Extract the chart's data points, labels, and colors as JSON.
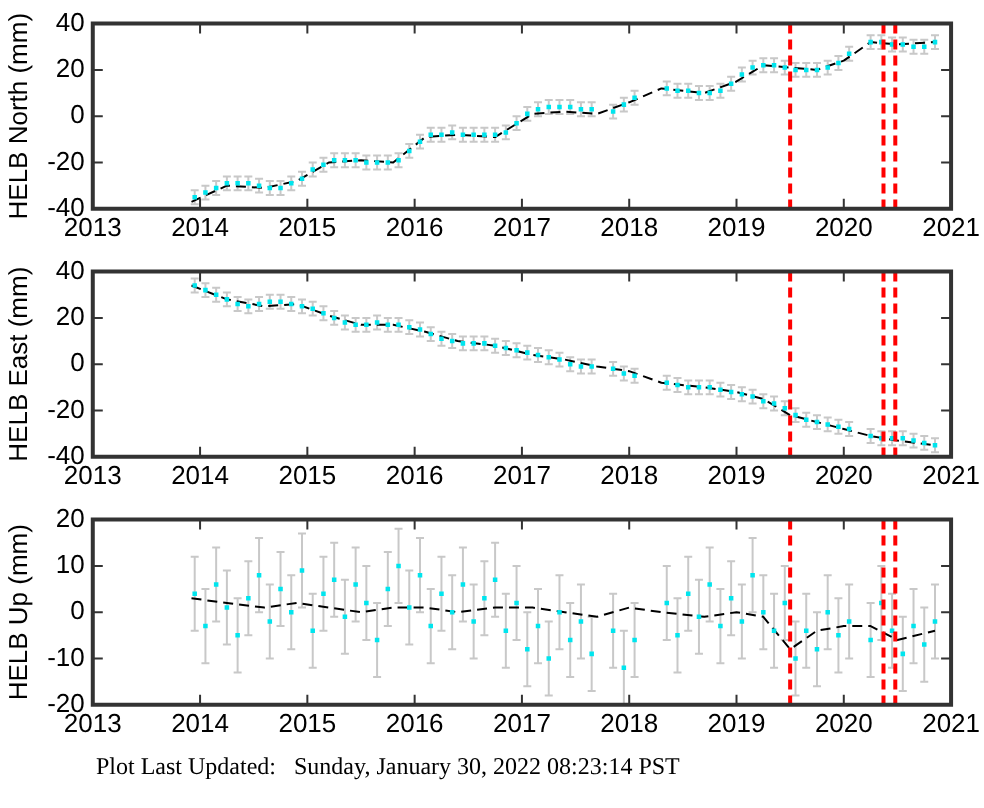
{
  "chart_data": [
    {
      "type": "scatter",
      "ylabel": "HELB North (mm)",
      "xlim": [
        2013,
        2021
      ],
      "xticks": [
        2013,
        2014,
        2015,
        2016,
        2017,
        2018,
        2019,
        2020,
        2021
      ],
      "ylim": [
        -40,
        40
      ],
      "yticks": [
        -40,
        -20,
        0,
        20,
        40
      ],
      "grid": false,
      "legend": false,
      "x": [
        2013.95,
        2014.05,
        2014.15,
        2014.25,
        2014.35,
        2014.45,
        2014.55,
        2014.65,
        2014.75,
        2014.85,
        2014.95,
        2015.05,
        2015.15,
        2015.25,
        2015.35,
        2015.45,
        2015.55,
        2015.65,
        2015.75,
        2015.85,
        2015.95,
        2016.05,
        2016.15,
        2016.25,
        2016.35,
        2016.45,
        2016.55,
        2016.65,
        2016.75,
        2016.85,
        2016.95,
        2017.05,
        2017.15,
        2017.25,
        2017.35,
        2017.45,
        2017.55,
        2017.65,
        2017.75,
        2017.85,
        2017.95,
        2018.05,
        2018.15,
        2018.25,
        2018.35,
        2018.45,
        2018.55,
        2018.65,
        2018.75,
        2018.85,
        2018.95,
        2019.05,
        2019.15,
        2019.25,
        2019.35,
        2019.45,
        2019.55,
        2019.65,
        2019.75,
        2019.85,
        2019.95,
        2020.05,
        2020.15,
        2020.25,
        2020.35,
        2020.45,
        2020.55,
        2020.65,
        2020.75,
        2020.85
      ],
      "series": [
        {
          "type": "scatter",
          "marker": "square",
          "color": "#00e5ee",
          "values": [
            -35,
            -33,
            -31,
            -29,
            -29,
            -29,
            -30,
            -31,
            -31,
            -29,
            -27,
            -23,
            -21,
            -19,
            -19,
            -19,
            -20,
            -20,
            -20,
            -19,
            -15,
            -11,
            -8,
            -8,
            -7,
            -8,
            -8,
            -8,
            -8,
            -7,
            -3,
            1,
            3,
            4,
            4,
            4,
            3,
            3,
            null,
            2,
            5,
            8,
            null,
            null,
            12,
            11,
            11,
            10,
            10,
            11,
            14,
            18,
            21,
            22,
            22,
            21,
            20,
            20,
            20,
            21,
            23,
            27,
            null,
            32,
            32,
            31,
            31,
            30,
            30,
            32
          ],
          "errors": [
            3,
            3,
            3,
            3,
            3,
            3,
            3,
            3,
            3,
            3,
            3,
            3,
            3,
            3,
            3,
            3,
            3,
            3,
            3,
            3,
            3,
            3,
            3,
            3,
            3,
            3,
            3,
            3,
            3,
            3,
            3,
            3,
            3,
            3,
            3,
            3,
            3,
            3,
            null,
            3,
            3,
            3,
            null,
            null,
            3,
            3,
            3,
            3,
            3,
            3,
            3,
            3,
            3,
            3,
            3,
            3,
            3,
            3,
            3,
            3,
            3,
            3,
            null,
            3,
            3,
            3,
            3,
            3,
            3,
            3
          ]
        },
        {
          "type": "line",
          "color": "#000000",
          "line_style": "dashed",
          "x": [
            2013.92,
            2014.25,
            2014.6,
            2014.9,
            2015.2,
            2015.5,
            2015.8,
            2016.1,
            2016.4,
            2016.75,
            2017.1,
            2017.4,
            2017.7,
            2018.0,
            2018.3,
            2018.7,
            2019.0,
            2019.25,
            2019.5,
            2019.75,
            2020.0,
            2020.25,
            2020.5,
            2020.85
          ],
          "values": [
            -37,
            -30,
            -31,
            -28,
            -20,
            -19,
            -20,
            -9,
            -8,
            -9,
            1,
            2,
            1,
            6,
            12,
            10,
            15,
            22,
            21,
            20,
            24,
            32,
            31,
            32
          ]
        }
      ],
      "ref_lines": [
        {
          "axis": "x",
          "value": 2019.5,
          "color": "#ff0000",
          "line_style": "dashed"
        },
        {
          "axis": "x",
          "value": 2020.37,
          "color": "#ff0000",
          "line_style": "dashed"
        },
        {
          "axis": "x",
          "value": 2020.48,
          "color": "#ff0000",
          "line_style": "dashed"
        }
      ]
    },
    {
      "type": "scatter",
      "ylabel": "HELB East (mm)",
      "xlim": [
        2013,
        2021
      ],
      "xticks": [
        2013,
        2014,
        2015,
        2016,
        2017,
        2018,
        2019,
        2020,
        2021
      ],
      "ylim": [
        -40,
        40
      ],
      "yticks": [
        -40,
        -20,
        0,
        20,
        40
      ],
      "grid": false,
      "legend": false,
      "x": [
        2013.95,
        2014.05,
        2014.15,
        2014.25,
        2014.35,
        2014.45,
        2014.55,
        2014.65,
        2014.75,
        2014.85,
        2014.95,
        2015.05,
        2015.15,
        2015.25,
        2015.35,
        2015.45,
        2015.55,
        2015.65,
        2015.75,
        2015.85,
        2015.95,
        2016.05,
        2016.15,
        2016.25,
        2016.35,
        2016.45,
        2016.55,
        2016.65,
        2016.75,
        2016.85,
        2016.95,
        2017.05,
        2017.15,
        2017.25,
        2017.35,
        2017.45,
        2017.55,
        2017.65,
        2017.75,
        2017.85,
        2017.95,
        2018.05,
        2018.15,
        2018.25,
        2018.35,
        2018.45,
        2018.55,
        2018.65,
        2018.75,
        2018.85,
        2018.95,
        2019.05,
        2019.15,
        2019.25,
        2019.35,
        2019.45,
        2019.55,
        2019.65,
        2019.75,
        2019.85,
        2019.95,
        2020.05,
        2020.15,
        2020.25,
        2020.35,
        2020.45,
        2020.55,
        2020.65,
        2020.75,
        2020.85
      ],
      "series": [
        {
          "type": "scatter",
          "marker": "square",
          "color": "#00e5ee",
          "values": [
            34,
            32,
            30,
            28,
            26,
            25,
            26,
            27,
            27,
            26,
            25,
            24,
            22,
            20,
            18,
            17,
            17,
            18,
            17,
            17,
            16,
            15,
            13,
            11,
            10,
            9,
            9,
            9,
            8,
            7,
            6,
            5,
            4,
            3,
            2,
            0,
            -1,
            -1,
            null,
            -2,
            -4,
            -5,
            null,
            null,
            -8,
            -9,
            -10,
            -10,
            -10,
            -11,
            -12,
            -13,
            -14,
            -16,
            -17,
            -19,
            -22,
            -24,
            -25,
            -26,
            -27,
            -28,
            null,
            -31,
            -32,
            -32,
            -32,
            -33,
            -34,
            -35
          ],
          "errors": [
            3,
            3,
            3,
            3,
            3,
            3,
            3,
            3,
            3,
            3,
            3,
            3,
            3,
            3,
            3,
            3,
            3,
            3,
            3,
            3,
            3,
            3,
            3,
            3,
            3,
            3,
            3,
            3,
            3,
            3,
            3,
            3,
            3,
            3,
            3,
            3,
            3,
            3,
            null,
            3,
            3,
            3,
            null,
            null,
            3,
            3,
            3,
            3,
            3,
            3,
            3,
            3,
            3,
            3,
            3,
            3,
            3,
            3,
            3,
            3,
            3,
            3,
            null,
            3,
            3,
            3,
            3,
            3,
            3,
            3
          ]
        },
        {
          "type": "line",
          "color": "#000000",
          "line_style": "dashed",
          "x": [
            2013.92,
            2014.25,
            2014.6,
            2014.9,
            2015.2,
            2015.5,
            2015.8,
            2016.1,
            2016.4,
            2016.75,
            2017.1,
            2017.4,
            2017.7,
            2018.0,
            2018.3,
            2018.7,
            2019.0,
            2019.25,
            2019.5,
            2019.75,
            2020.0,
            2020.25,
            2020.5,
            2020.85
          ],
          "values": [
            34,
            28,
            25,
            26,
            21,
            17,
            17,
            14,
            10,
            8,
            4,
            2,
            -1,
            -3,
            -8,
            -10,
            -12,
            -15,
            -22,
            -25,
            -28,
            -31,
            -33,
            -35
          ]
        }
      ],
      "ref_lines": [
        {
          "axis": "x",
          "value": 2019.5,
          "color": "#ff0000",
          "line_style": "dashed"
        },
        {
          "axis": "x",
          "value": 2020.37,
          "color": "#ff0000",
          "line_style": "dashed"
        },
        {
          "axis": "x",
          "value": 2020.48,
          "color": "#ff0000",
          "line_style": "dashed"
        }
      ]
    },
    {
      "type": "scatter",
      "ylabel": "HELB Up (mm)",
      "xlim": [
        2013,
        2021
      ],
      "xticks": [
        2013,
        2014,
        2015,
        2016,
        2017,
        2018,
        2019,
        2020,
        2021
      ],
      "ylim": [
        -20,
        20
      ],
      "yticks": [
        -20,
        -10,
        0,
        10,
        20
      ],
      "grid": false,
      "legend": false,
      "annotations": [
        "Plot Last Updated:   Sunday, January 30, 2022 08:23:14 PST"
      ],
      "x": [
        2013.95,
        2014.05,
        2014.15,
        2014.25,
        2014.35,
        2014.45,
        2014.55,
        2014.65,
        2014.75,
        2014.85,
        2014.95,
        2015.05,
        2015.15,
        2015.25,
        2015.35,
        2015.45,
        2015.55,
        2015.65,
        2015.75,
        2015.85,
        2015.95,
        2016.05,
        2016.15,
        2016.25,
        2016.35,
        2016.45,
        2016.55,
        2016.65,
        2016.75,
        2016.85,
        2016.95,
        2017.05,
        2017.15,
        2017.25,
        2017.35,
        2017.45,
        2017.55,
        2017.65,
        2017.75,
        2017.85,
        2017.95,
        2018.05,
        2018.15,
        2018.25,
        2018.35,
        2018.45,
        2018.55,
        2018.65,
        2018.75,
        2018.85,
        2018.95,
        2019.05,
        2019.15,
        2019.25,
        2019.35,
        2019.45,
        2019.55,
        2019.65,
        2019.75,
        2019.85,
        2019.95,
        2020.05,
        2020.15,
        2020.25,
        2020.35,
        2020.45,
        2020.55,
        2020.65,
        2020.75,
        2020.85
      ],
      "series": [
        {
          "type": "scatter",
          "marker": "square",
          "color": "#00e5ee",
          "values": [
            4,
            -3,
            6,
            1,
            -5,
            3,
            8,
            -2,
            5,
            0,
            9,
            -4,
            4,
            7,
            -1,
            6,
            2,
            -6,
            5,
            10,
            1,
            8,
            -3,
            4,
            0,
            6,
            -2,
            3,
            7,
            -4,
            2,
            -8,
            -3,
            -10,
            0,
            -6,
            -2,
            -9,
            null,
            -4,
            -12,
            -6,
            null,
            null,
            2,
            -5,
            4,
            -1,
            6,
            -3,
            3,
            -2,
            8,
            0,
            -4,
            2,
            -10,
            -4,
            -8,
            0,
            -5,
            -2,
            null,
            -6,
            2,
            -4,
            -9,
            -3,
            -7,
            -2
          ],
          "errors": [
            8,
            8,
            8,
            8,
            8,
            8,
            8,
            8,
            8,
            8,
            8,
            8,
            8,
            8,
            8,
            8,
            8,
            8,
            8,
            8,
            8,
            8,
            8,
            8,
            8,
            8,
            8,
            8,
            8,
            8,
            8,
            8,
            8,
            8,
            8,
            8,
            8,
            8,
            null,
            8,
            8,
            8,
            null,
            null,
            8,
            8,
            8,
            8,
            8,
            8,
            8,
            8,
            8,
            8,
            8,
            8,
            8,
            8,
            8,
            8,
            8,
            8,
            null,
            8,
            8,
            8,
            8,
            8,
            8,
            8
          ]
        },
        {
          "type": "line",
          "color": "#000000",
          "line_style": "dashed",
          "x": [
            2013.92,
            2014.25,
            2014.6,
            2014.9,
            2015.2,
            2015.5,
            2015.8,
            2016.1,
            2016.4,
            2016.75,
            2017.1,
            2017.4,
            2017.7,
            2018.0,
            2018.3,
            2018.7,
            2019.0,
            2019.25,
            2019.5,
            2019.75,
            2020.0,
            2020.25,
            2020.5,
            2020.85
          ],
          "values": [
            3,
            2,
            1,
            2,
            1,
            0,
            1,
            1,
            0,
            1,
            1,
            0,
            -1,
            1,
            0,
            -1,
            0,
            -1,
            -8,
            -4,
            -3,
            -3,
            -6,
            -4
          ]
        }
      ],
      "ref_lines": [
        {
          "axis": "x",
          "value": 2019.5,
          "color": "#ff0000",
          "line_style": "dashed"
        },
        {
          "axis": "x",
          "value": 2020.37,
          "color": "#ff0000",
          "line_style": "dashed"
        },
        {
          "axis": "x",
          "value": 2020.48,
          "color": "#ff0000",
          "line_style": "dashed"
        }
      ]
    }
  ]
}
